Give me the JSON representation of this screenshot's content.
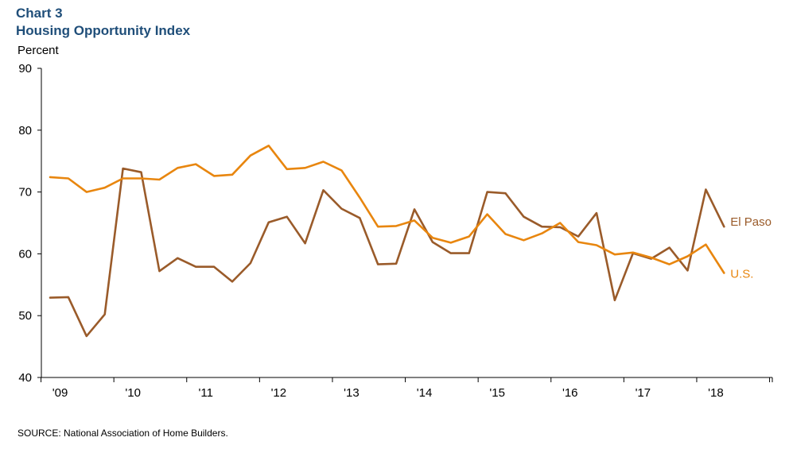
{
  "header": {
    "chart_number": "Chart 3",
    "title": "Housing Opportunity Index",
    "unit": "Percent"
  },
  "footer": {
    "source": "SOURCE: National Association of Home Builders."
  },
  "colors": {
    "el_paso": "#9a5b2a",
    "us": "#e8860f",
    "title": "#1f4e79",
    "axis": "#000000"
  },
  "chart_data": {
    "type": "line",
    "title": "Housing Opportunity Index",
    "ylabel": "Percent",
    "xlabel": "",
    "ylim": [
      40,
      90
    ],
    "y_ticks": [
      40,
      50,
      60,
      70,
      80,
      90
    ],
    "x_tick_labels": [
      "'09",
      "'10",
      "'11",
      "'12",
      "'13",
      "'14",
      "'15",
      "'16",
      "'17",
      "'18"
    ],
    "grid": false,
    "legend": "inline-right",
    "x": [
      "2009Q1",
      "2009Q2",
      "2009Q3",
      "2009Q4",
      "2010Q1",
      "2010Q2",
      "2010Q3",
      "2010Q4",
      "2011Q1",
      "2011Q2",
      "2011Q3",
      "2011Q4",
      "2012Q1",
      "2012Q2",
      "2012Q3",
      "2012Q4",
      "2013Q1",
      "2013Q2",
      "2013Q3",
      "2013Q4",
      "2014Q1",
      "2014Q2",
      "2014Q3",
      "2014Q4",
      "2015Q1",
      "2015Q2",
      "2015Q3",
      "2015Q4",
      "2016Q1",
      "2016Q2",
      "2016Q3",
      "2016Q4",
      "2017Q1",
      "2017Q2",
      "2017Q3",
      "2017Q4",
      "2018Q1",
      "2018Q2"
    ],
    "series": [
      {
        "name": "El Paso",
        "values": [
          52.9,
          53.0,
          46.7,
          50.2,
          73.8,
          73.2,
          57.2,
          59.3,
          57.9,
          57.9,
          55.5,
          58.5,
          65.1,
          66.0,
          61.7,
          70.3,
          67.3,
          65.8,
          58.3,
          58.4,
          67.2,
          61.9,
          60.1,
          60.1,
          70.0,
          69.8,
          66.0,
          64.4,
          64.3,
          62.8,
          66.6,
          52.5,
          60.1,
          59.2,
          61.0,
          57.3,
          70.4,
          64.4
        ]
      },
      {
        "name": "U.S.",
        "values": [
          72.4,
          72.2,
          70.0,
          70.7,
          72.2,
          72.2,
          72.0,
          73.9,
          74.5,
          72.6,
          72.8,
          75.9,
          77.5,
          73.7,
          73.9,
          74.9,
          73.5,
          69.1,
          64.4,
          64.5,
          65.4,
          62.6,
          61.8,
          62.8,
          66.4,
          63.2,
          62.2,
          63.3,
          65.0,
          61.9,
          61.4,
          59.9,
          60.2,
          59.4,
          58.3,
          59.6,
          61.5,
          56.9
        ]
      }
    ]
  }
}
